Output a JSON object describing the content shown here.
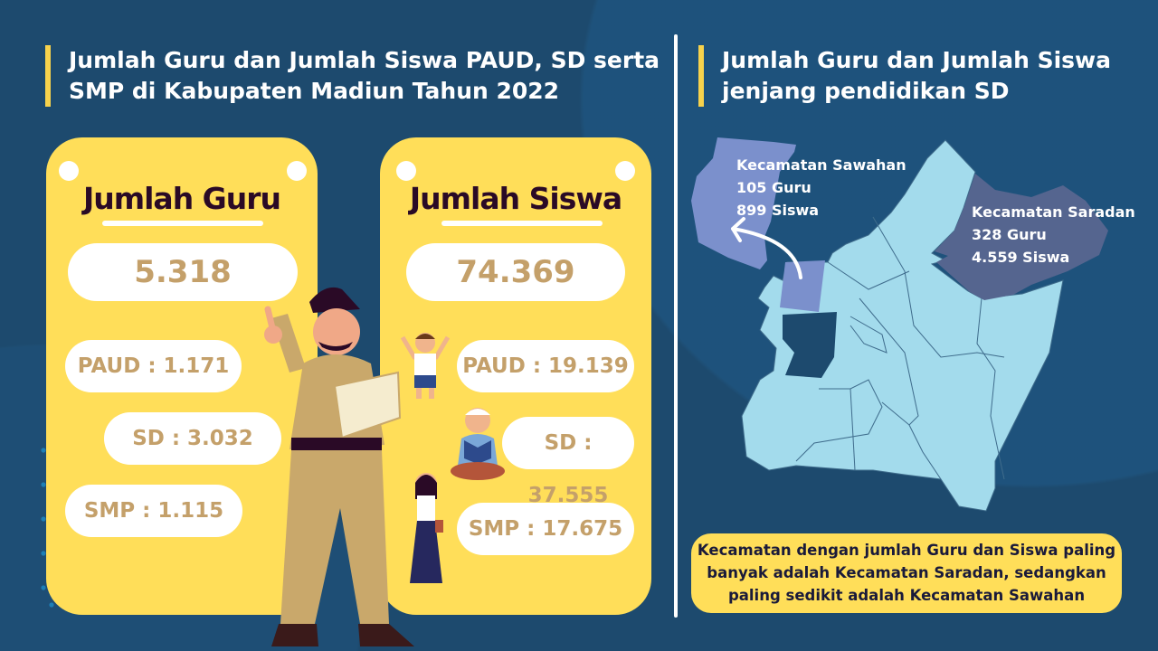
{
  "left": {
    "title_line1": "Jumlah Guru dan Jumlah Siswa PAUD, SD serta",
    "title_line2": "SMP di Kabupaten Madiun Tahun 2022",
    "guru": {
      "heading": "Jumlah Guru",
      "total": "5.318",
      "paud": "PAUD : 1.171",
      "sd": "SD : 3.032",
      "smp": "SMP : 1.115"
    },
    "siswa": {
      "heading": "Jumlah Siswa",
      "total": "74.369",
      "paud": "PAUD : 19.139",
      "sd": "SD : 37.555",
      "smp": "SMP : 17.675"
    }
  },
  "right": {
    "title_line1": "Jumlah Guru dan Jumlah Siswa",
    "title_line2": "jenjang pendidikan SD",
    "sawahan": {
      "name": "Kecamatan Sawahan",
      "guru": "105 Guru",
      "siswa": "899 Siswa"
    },
    "saradan": {
      "name": "Kecamatan Saradan",
      "guru": "328 Guru",
      "siswa": "4.559 Siswa"
    },
    "note_line1": "Kecamatan dengan jumlah Guru dan Siswa paling",
    "note_line2": "banyak adalah Kecamatan Saradan, sedangkan",
    "note_line3": "paling sedikit adalah Kecamatan Sawahan"
  },
  "colors": {
    "background": "#1d4a6e",
    "card": "#ffde59",
    "map": "#a3dbec",
    "sawahan": "#7b90cc",
    "saradan": "#55658f",
    "number": "#c4a06a"
  }
}
